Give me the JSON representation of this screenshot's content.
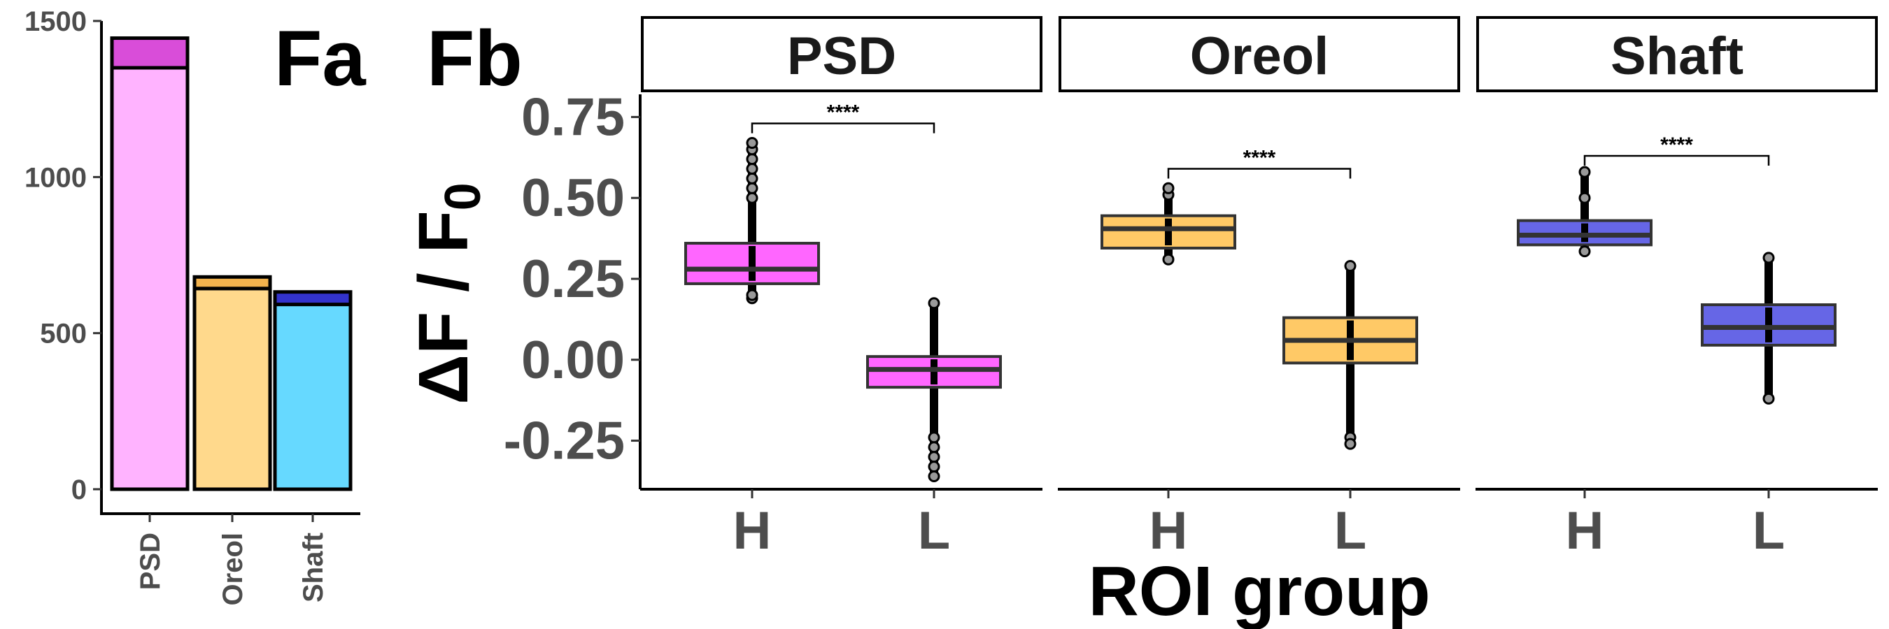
{
  "panel_labels": {
    "a": "Fa",
    "b": "Fb"
  },
  "chart_data": [
    {
      "type": "bar",
      "stacked": true,
      "categories": [
        "PSD",
        "Oreol",
        "Shaft"
      ],
      "series": [
        {
          "values": [
            1350,
            643,
            592
          ],
          "colors": [
            "#ffb3ff",
            "#ffd98c",
            "#66d9ff"
          ]
        },
        {
          "values": [
            95,
            37,
            40
          ],
          "colors": [
            "#d94dd9",
            "#f2b24d",
            "#3333cc"
          ]
        }
      ],
      "ylim": [
        0,
        1500
      ],
      "yticks": [
        0,
        500,
        1000,
        1500
      ],
      "xlabel": "",
      "ylabel": "",
      "grid": false
    },
    {
      "type": "box",
      "facets": [
        "PSD",
        "Oreol",
        "Shaft"
      ],
      "categories": [
        "H",
        "L"
      ],
      "xlabel": "ROI group",
      "ylabel": "ΔF / F0",
      "ylim": [
        -0.4,
        0.82
      ],
      "yticks": [
        -0.25,
        0.0,
        0.25,
        0.5,
        0.75
      ],
      "ytick_labels": [
        "-0.25",
        "0.00",
        "0.25",
        "0.50",
        "0.75"
      ],
      "grid": false,
      "boxes": [
        {
          "facet": "PSD",
          "group": "H",
          "q1": 0.235,
          "median": 0.28,
          "q3": 0.36,
          "whisker_low": 0.185,
          "whisker_high": 0.47,
          "outliers_low": [
            0.19,
            0.2
          ],
          "outliers_high": [
            0.5,
            0.53,
            0.56,
            0.59,
            0.62,
            0.65,
            0.67
          ],
          "color": "#ff66ff"
        },
        {
          "facet": "PSD",
          "group": "L",
          "q1": -0.085,
          "median": -0.03,
          "q3": 0.01,
          "whisker_low": -0.22,
          "whisker_high": 0.17,
          "outliers_low": [
            -0.24,
            -0.27,
            -0.3,
            -0.33,
            -0.36
          ],
          "outliers_high": [
            0.175
          ],
          "color": "#ff66ff"
        },
        {
          "facet": "Oreol",
          "group": "H",
          "q1": 0.345,
          "median": 0.405,
          "q3": 0.445,
          "whisker_low": 0.305,
          "whisker_high": 0.49,
          "outliers_low": [
            0.31
          ],
          "outliers_high": [
            0.51,
            0.53
          ],
          "color": "#ffc966"
        },
        {
          "facet": "Oreol",
          "group": "L",
          "q1": -0.01,
          "median": 0.06,
          "q3": 0.13,
          "whisker_low": -0.22,
          "whisker_high": 0.29,
          "outliers_low": [
            -0.24,
            -0.26
          ],
          "outliers_high": [
            0.29
          ],
          "color": "#ffc966"
        },
        {
          "facet": "Shaft",
          "group": "H",
          "q1": 0.355,
          "median": 0.385,
          "q3": 0.43,
          "whisker_low": 0.33,
          "whisker_high": 0.47,
          "outliers_low": [
            0.335
          ],
          "outliers_high": [
            0.5,
            0.58
          ],
          "color": "#6666e6"
        },
        {
          "facet": "Shaft",
          "group": "L",
          "q1": 0.045,
          "median": 0.1,
          "q3": 0.17,
          "whisker_low": -0.1,
          "whisker_high": 0.31,
          "outliers_low": [
            -0.12
          ],
          "outliers_high": [
            0.315
          ],
          "color": "#6666e6"
        }
      ],
      "annotations": [
        {
          "facet": "PSD",
          "text": "****",
          "y": 0.73
        },
        {
          "facet": "Oreol",
          "text": "****",
          "y": 0.59
        },
        {
          "facet": "Shaft",
          "text": "****",
          "y": 0.63
        }
      ]
    }
  ]
}
